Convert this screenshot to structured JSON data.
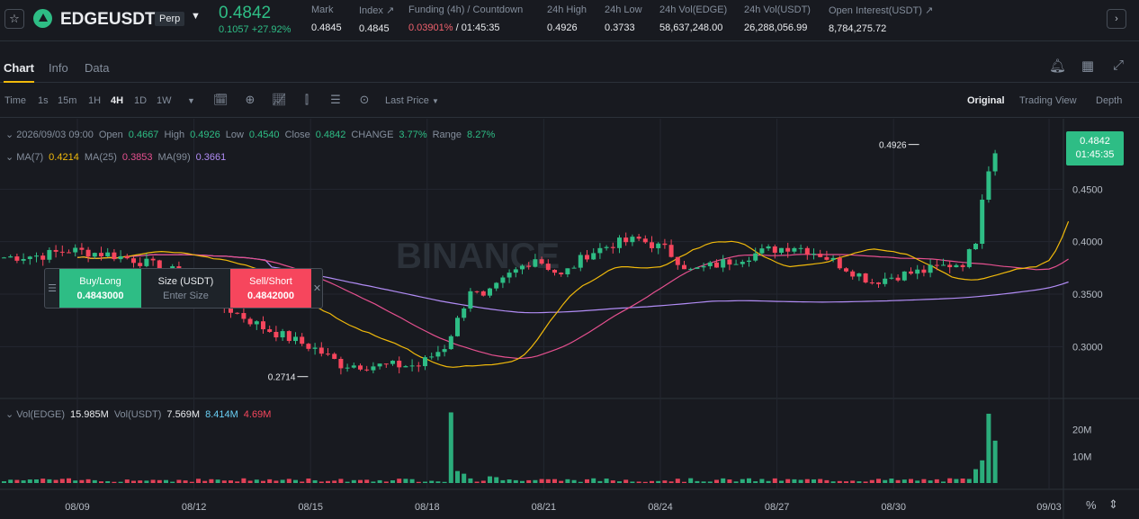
{
  "header": {
    "symbol": "EDGEUSDT",
    "contract_type": "Perp",
    "last_price": "0.4842",
    "change": "0.1057 +27.92%",
    "stats": [
      {
        "label": "Mark",
        "value": "0.4845"
      },
      {
        "label": "Index ↗",
        "value": "0.4845"
      },
      {
        "label": "Funding (4h) / Countdown",
        "value_a": "0.03901%",
        "value_b": " / 01:45:35"
      },
      {
        "label": "24h High",
        "value": "0.4926"
      },
      {
        "label": "24h Low",
        "value": "0.3733"
      },
      {
        "label": "24h Vol(EDGE)",
        "value": "58,637,248.00"
      },
      {
        "label": "24h Vol(USDT)",
        "value": "26,288,056.99"
      },
      {
        "label": "Open Interest(USDT) ↗",
        "value": "8,784,275.72"
      }
    ]
  },
  "tabs": [
    "Chart",
    "Info",
    "Data"
  ],
  "toolbar": {
    "intervals": [
      "Time",
      "1s",
      "15m",
      "1H",
      "4H",
      "1D",
      "1W"
    ],
    "active_interval": "4H",
    "price_type": "Last Price",
    "views": [
      "Original",
      "Trading View",
      "Depth"
    ],
    "active_view": "Original"
  },
  "legend": {
    "date": "2026/09/03 09:00",
    "open_label": "Open",
    "open": "0.4667",
    "high_label": "High",
    "high": "0.4926",
    "low_label": "Low",
    "low": "0.4540",
    "close_label": "Close",
    "close": "0.4842",
    "change_label": "CHANGE",
    "change": "3.77%",
    "range_label": "Range",
    "range": "8.27%",
    "ma7_label": "MA(7)",
    "ma7": "0.4214",
    "ma25_label": "MA(25)",
    "ma25": "0.3853",
    "ma99_label": "MA(99)",
    "ma99": "0.3661",
    "vol_label": "Vol(EDGE)",
    "vol": "15.985M",
    "volusdt_label": "Vol(USDT)",
    "volusdt": "7.569M",
    "vol_ma1": "8.414M",
    "vol_ma2": "4.69M"
  },
  "price_tag": {
    "price": "0.4842",
    "countdown": "01:45:35"
  },
  "high_marker": "0.4926",
  "low_marker": "0.2714",
  "watermark": "BINANCE",
  "order_widget": {
    "buy_label": "Buy/Long",
    "buy_price": "0.4843000",
    "size_label": "Size (USDT)",
    "size_placeholder": "Enter Size",
    "sell_label": "Sell/Short",
    "sell_price": "0.4842000"
  },
  "footer": {
    "percent_label": "%"
  },
  "chart_data": {
    "type": "candlestick",
    "price_axis": {
      "min": 0.26,
      "max": 0.5,
      "ticks": [
        "0.4500",
        "0.4000",
        "0.3500",
        "0.3000"
      ],
      "tick_values": [
        0.45,
        0.4,
        0.35,
        0.3
      ]
    },
    "volume_axis": {
      "max": 27,
      "ticks": [
        "20M",
        "10M"
      ],
      "tick_values": [
        20,
        10
      ]
    },
    "x_ticks": [
      "08/09",
      "08/12",
      "08/15",
      "08/18",
      "08/21",
      "08/24",
      "08/27",
      "08/30",
      "09/03"
    ],
    "x_tick_index": [
      0,
      18,
      36,
      54,
      72,
      90,
      108,
      126,
      150
    ],
    "anchors": [
      [
        0,
        0.385
      ],
      [
        6,
        0.387
      ],
      [
        10,
        0.392
      ],
      [
        16,
        0.388
      ],
      [
        20,
        0.383
      ],
      [
        26,
        0.372
      ],
      [
        32,
        0.345
      ],
      [
        40,
        0.318
      ],
      [
        48,
        0.298
      ],
      [
        52,
        0.283
      ],
      [
        56,
        0.282
      ],
      [
        64,
        0.282
      ],
      [
        68,
        0.3
      ],
      [
        70,
        0.325
      ],
      [
        72,
        0.355
      ],
      [
        74,
        0.345
      ],
      [
        78,
        0.368
      ],
      [
        82,
        0.385
      ],
      [
        86,
        0.367
      ],
      [
        90,
        0.388
      ],
      [
        94,
        0.398
      ],
      [
        98,
        0.402
      ],
      [
        102,
        0.393
      ],
      [
        106,
        0.372
      ],
      [
        110,
        0.378
      ],
      [
        114,
        0.385
      ],
      [
        118,
        0.392
      ],
      [
        122,
        0.396
      ],
      [
        126,
        0.388
      ],
      [
        130,
        0.375
      ],
      [
        134,
        0.362
      ],
      [
        138,
        0.368
      ],
      [
        142,
        0.372
      ],
      [
        146,
        0.378
      ],
      [
        148,
        0.38
      ],
      [
        150,
        0.398
      ],
      [
        151,
        0.44
      ],
      [
        152,
        0.467
      ],
      [
        153,
        0.4842
      ]
    ],
    "volume_spikes": {
      "69": 26.5,
      "152": 26.0,
      "153": 15.9,
      "151": 8.5,
      "150": 5.2,
      "70": 4.5,
      "71": 3.5,
      "75": 2.5,
      "76": 2.2
    },
    "count": 154
  }
}
